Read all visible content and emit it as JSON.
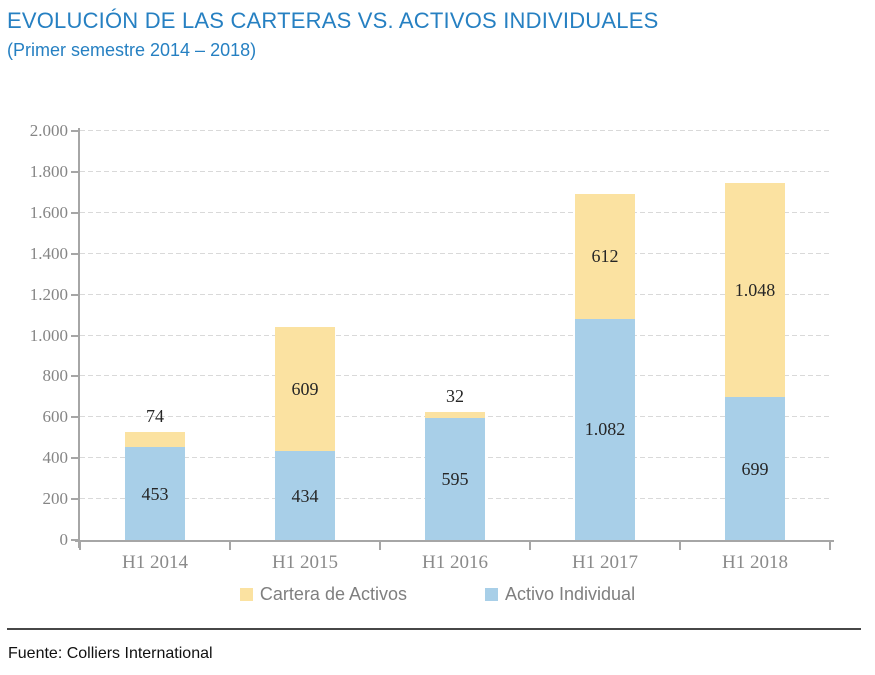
{
  "page": {
    "title": "EVOLUCIÓN DE LAS CARTERAS VS. ACTIVOS INDIVIDUALES",
    "subtitle": "(Primer semestre 2014 – 2018)",
    "source": "Fuente: Colliers International"
  },
  "colors": {
    "title_blue": "#2680C2",
    "cartera_yellow": "#FBE2A1",
    "activo_blue": "#A8CFE8",
    "axis_gray": "#A6A6A6",
    "grid_gray": "#D9D9D9",
    "tick_label_gray": "#858585",
    "data_label_dark": "#262626",
    "legend_text_gray": "#7F7F7F"
  },
  "chart_data": {
    "type": "bar",
    "stacked": true,
    "title": "EVOLUCIÓN DE LAS CARTERAS VS. ACTIVOS INDIVIDUALES (Primer semestre 2014 – 2018)",
    "categories": [
      "H1 2014",
      "H1 2015",
      "H1 2016",
      "H1 2017",
      "H1 2018"
    ],
    "series": [
      {
        "name": "Activo Individual",
        "color": "#A8CFE8",
        "values": [
          453,
          434,
          595,
          1082,
          699
        ],
        "labels": [
          "453",
          "434",
          "595",
          "1.082",
          "699"
        ]
      },
      {
        "name": "Cartera de Activos",
        "color": "#FBE2A1",
        "values": [
          74,
          609,
          32,
          612,
          1048
        ],
        "labels": [
          "74",
          "609",
          "32",
          "612",
          "1.048"
        ]
      }
    ],
    "totals": [
      527,
      1043,
      627,
      1694,
      1747
    ],
    "ylim": [
      0,
      2000
    ],
    "y_tick_values": [
      0,
      200,
      400,
      600,
      800,
      1000,
      1200,
      1400,
      1600,
      1800,
      2000
    ],
    "y_tick_labels": [
      "0",
      "200",
      "400",
      "600",
      "800",
      "1.000",
      "1.200",
      "1.400",
      "1.600",
      "1.800",
      "2.000"
    ],
    "grid": "horizontal dashed",
    "legend_position": "bottom"
  },
  "legend": {
    "items": [
      {
        "label": "Cartera de Activos",
        "color": "#FBE2A1"
      },
      {
        "label": "Activo Individual",
        "color": "#A8CFE8"
      }
    ]
  }
}
